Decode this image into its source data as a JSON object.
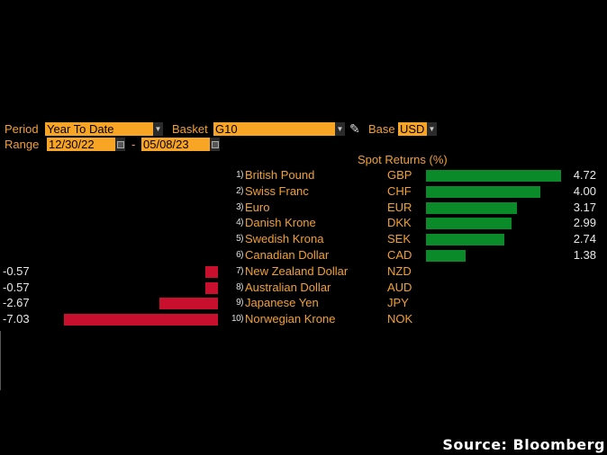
{
  "controls": {
    "period_label": "Period",
    "period_value": "Year To Date",
    "basket_label": "Basket",
    "basket_value": "G10",
    "base_label": "Base",
    "base_value": "USD",
    "range_label": "Range",
    "range_start": "12/30/22",
    "range_separator": "-",
    "range_end": "05/08/23"
  },
  "chart_data": {
    "type": "bar",
    "title": "Spot Returns (%)",
    "categories": [
      "British Pound",
      "Swiss Franc",
      "Euro",
      "Danish Krone",
      "Swedish Krona",
      "Canadian Dollar",
      "New Zealand Dollar",
      "Australian Dollar",
      "Japanese Yen",
      "Norwegian Krone"
    ],
    "ranks": [
      "1)",
      "2)",
      "3)",
      "4)",
      "5)",
      "6)",
      "7)",
      "8)",
      "9)",
      "10)"
    ],
    "codes": [
      "GBP",
      "CHF",
      "EUR",
      "DKK",
      "SEK",
      "CAD",
      "NZD",
      "AUD",
      "JPY",
      "NOK"
    ],
    "values": [
      4.72,
      4.0,
      3.17,
      2.99,
      2.74,
      1.38,
      -0.57,
      -0.57,
      -2.67,
      -7.03
    ],
    "labels": [
      "4.72",
      "4.00",
      "3.17",
      "2.99",
      "2.74",
      "1.38",
      "-0.57",
      "-0.57",
      "-2.67",
      "-7.03"
    ],
    "colors": {
      "positive": "#0b8a2a",
      "negative": "#c8102e"
    }
  },
  "footer": {
    "source": "Source: Bloomberg"
  },
  "icons": {
    "dropdown": "chevron-down-icon",
    "calendar": "calendar-icon",
    "edit": "pencil-icon"
  }
}
